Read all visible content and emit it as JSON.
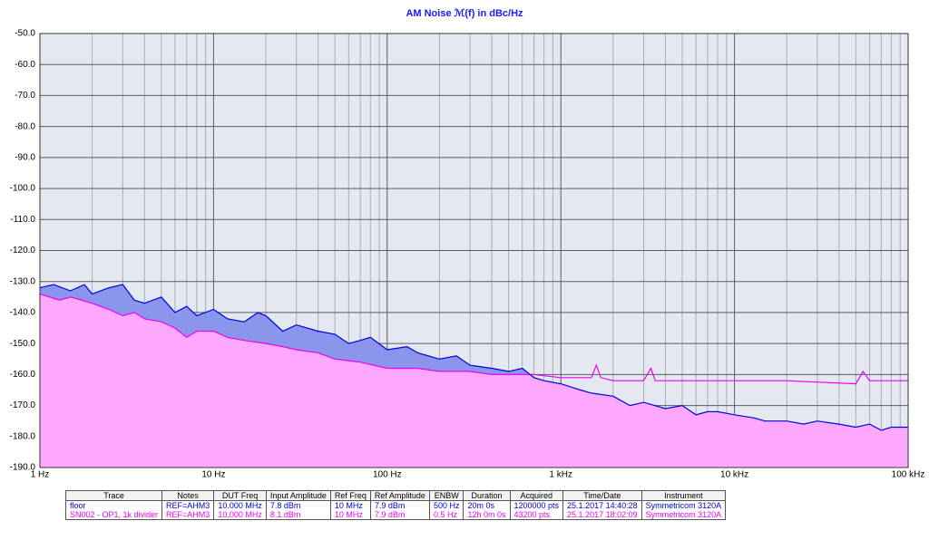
{
  "chart_data": {
    "type": "line",
    "title": "AM Noise ℳ(f) in dBc/Hz",
    "log_x": true,
    "grid": true,
    "xlim": [
      1,
      100000
    ],
    "xticks": [
      {
        "value": 1,
        "label": "1 Hz"
      },
      {
        "value": 10,
        "label": "10 Hz"
      },
      {
        "value": 100,
        "label": "100 Hz"
      },
      {
        "value": 1000,
        "label": "1 kHz"
      },
      {
        "value": 10000,
        "label": "10 kHz"
      },
      {
        "value": 100000,
        "label": "100 kHz"
      }
    ],
    "ylim": [
      -190,
      -50
    ],
    "yticks": [
      {
        "value": -50,
        "label": "-50.0"
      },
      {
        "value": -60,
        "label": "-60.0"
      },
      {
        "value": -70,
        "label": "-70.0"
      },
      {
        "value": -80,
        "label": "-80.0"
      },
      {
        "value": -90,
        "label": "-90.0"
      },
      {
        "value": -100,
        "label": "-100.0"
      },
      {
        "value": -110,
        "label": "-110.0"
      },
      {
        "value": -120,
        "label": "-120.0"
      },
      {
        "value": -130,
        "label": "-130.0"
      },
      {
        "value": -140,
        "label": "-140.0"
      },
      {
        "value": -150,
        "label": "-150.0"
      },
      {
        "value": -160,
        "label": "-160.0"
      },
      {
        "value": -170,
        "label": "-170.0"
      },
      {
        "value": -180,
        "label": "-180.0"
      },
      {
        "value": -190,
        "label": "-190.0"
      }
    ],
    "series": [
      {
        "name": "floor",
        "color": "#0000dd",
        "fill": "#8a96ec",
        "x": [
          1,
          1.2,
          1.5,
          1.8,
          2,
          2.5,
          3,
          3.5,
          4,
          5,
          6,
          7,
          8,
          10,
          12,
          15,
          18,
          20,
          25,
          30,
          40,
          50,
          60,
          70,
          80,
          100,
          130,
          150,
          200,
          250,
          300,
          400,
          500,
          600,
          700,
          800,
          1000,
          1300,
          1500,
          2000,
          2500,
          3000,
          4000,
          5000,
          6000,
          7000,
          8000,
          10000,
          13000,
          15000,
          20000,
          25000,
          30000,
          40000,
          50000,
          60000,
          70000,
          80000,
          100000
        ],
        "values": [
          -132,
          -131,
          -133,
          -131,
          -134,
          -132,
          -131,
          -136,
          -137,
          -135,
          -140,
          -138,
          -141,
          -139,
          -142,
          -143,
          -140,
          -141,
          -146,
          -144,
          -146,
          -147,
          -150,
          -149,
          -148,
          -152,
          -151,
          -153,
          -155,
          -154,
          -157,
          -158,
          -159,
          -158,
          -161,
          -162,
          -163,
          -165,
          -166,
          -167,
          -170,
          -169,
          -171,
          -170,
          -173,
          -172,
          -172,
          -173,
          -174,
          -175,
          -175,
          -176,
          -175,
          -176,
          -177,
          -176,
          -178,
          -177,
          -177
        ]
      },
      {
        "name": "SN002 - OP1, 1k divider",
        "color": "#ee00ee",
        "fill": "#ffa8ff",
        "x": [
          1,
          1.3,
          1.5,
          2,
          2.5,
          3,
          3.5,
          4,
          5,
          6,
          7,
          8,
          10,
          12,
          15,
          20,
          25,
          30,
          40,
          50,
          70,
          100,
          150,
          200,
          300,
          400,
          500,
          700,
          1000,
          1500,
          1600,
          1700,
          2000,
          3000,
          3300,
          3500,
          5000,
          10000,
          20000,
          50000,
          55000,
          60000,
          100000
        ],
        "values": [
          -134,
          -136,
          -135,
          -137,
          -139,
          -141,
          -140,
          -142,
          -143,
          -145,
          -148,
          -146,
          -146,
          -148,
          -149,
          -150,
          -151,
          -152,
          -153,
          -155,
          -156,
          -158,
          -158,
          -159,
          -159,
          -160,
          -160,
          -160,
          -161,
          -161,
          -157,
          -161,
          -162,
          -162,
          -158,
          -162,
          -162,
          -162,
          -162,
          -163,
          -159,
          -162,
          -162
        ]
      }
    ]
  },
  "table": {
    "header": [
      "Trace",
      "Notes",
      "DUT Freq",
      "Input Amplitude",
      "Ref Freq",
      "Ref Amplitude",
      "ENBW",
      "Duration",
      "Acquired",
      "Time/Date",
      "Instrument"
    ],
    "rows": [
      [
        "floor",
        "REF=AHM3",
        "10.000 MHz",
        "7.8 dBm",
        "10 MHz",
        "7.9 dBm",
        "500 Hz",
        "20m 0s",
        "1200000 pts",
        "25.1.2017 14:40:28",
        "Symmetricom 3120A"
      ],
      [
        "SN002 - OP1, 1k divider",
        "REF=AHM3",
        "10.000 MHz",
        "8.1 dBm",
        "10 MHz",
        "7.9 dBm",
        "0.5 Hz",
        "12h 0m 0s",
        "43200 pts",
        "25.1.2017 18:02:09",
        "Symmetricom 3120A"
      ]
    ]
  }
}
